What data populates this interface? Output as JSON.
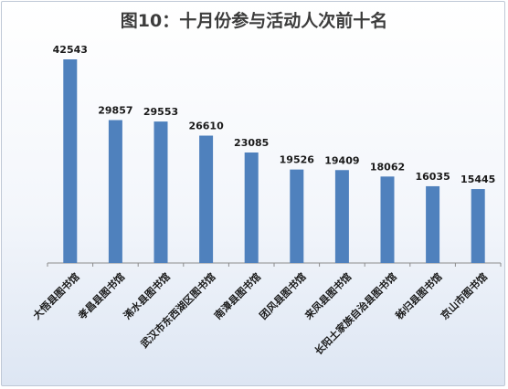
{
  "chart_data": {
    "type": "bar",
    "title": "图10：十月份参与活动人次前十名",
    "categories": [
      "大悟县图书馆",
      "孝昌县图书馆",
      "浠水县图书馆",
      "武汉市东西湖区图书馆",
      "南漳县图书馆",
      "团风县图书馆",
      "来凤县图书馆",
      "长阳土家族自治县图书馆",
      "秭归县图书馆",
      "京山市图书馆"
    ],
    "values": [
      42543,
      29857,
      29553,
      26610,
      23085,
      19526,
      19409,
      18062,
      16035,
      15445
    ],
    "ylim": [
      0,
      50000
    ],
    "colors": {
      "bar": "#4f81bd",
      "axis": "#8c8c8c"
    },
    "grid": false,
    "legend": "none"
  }
}
